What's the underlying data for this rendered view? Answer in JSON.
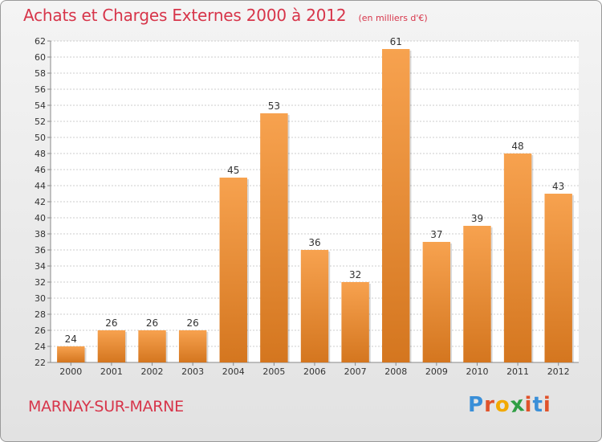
{
  "header": {
    "title": "Achats et Charges Externes 2000 à 2012",
    "unit": "(en milliers d'€)"
  },
  "footer": {
    "place": "MARNAY-SUR-MARNE",
    "brand": "Proxiti",
    "brand_letters": [
      "P",
      "r",
      "o",
      "x",
      "i",
      "t",
      "i"
    ],
    "brand_colors": [
      "#3a8fd8",
      "#e0532b",
      "#f2a900",
      "#2f9e44",
      "#e0532b",
      "#3a8fd8",
      "#e0532b"
    ]
  },
  "chart_data": {
    "type": "bar",
    "title": "Achats et Charges Externes 2000 à 2012",
    "ylabel": "",
    "xlabel": "",
    "categories": [
      "2000",
      "2001",
      "2002",
      "2003",
      "2004",
      "2005",
      "2006",
      "2007",
      "2008",
      "2009",
      "2010",
      "2011",
      "2012"
    ],
    "values": [
      24,
      26,
      26,
      26,
      45,
      53,
      36,
      32,
      61,
      37,
      39,
      48,
      43
    ],
    "ylim": [
      22,
      62
    ],
    "yticks": [
      22,
      24,
      26,
      28,
      30,
      32,
      34,
      36,
      38,
      40,
      42,
      44,
      46,
      48,
      50,
      52,
      54,
      56,
      58,
      60,
      62
    ],
    "grid": true,
    "bar_color_top": "#f7a24f",
    "bar_color_bottom": "#d4761f"
  }
}
